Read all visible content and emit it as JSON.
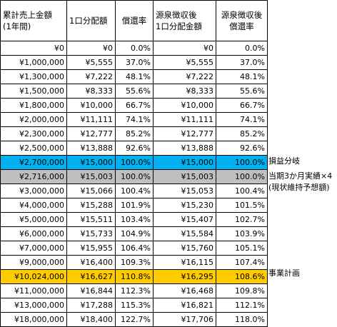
{
  "header": {
    "col1_line1": "累計売上金額",
    "col1_line2": "(1年間)",
    "col2": "1口分配額",
    "col3": "償還率",
    "col4_line1": "源泉徴収後",
    "col4_line2": "1口分配金額",
    "col5_line1": "源泉徴収後",
    "col5_line2": "償還率"
  },
  "rows": [
    {
      "sales": "¥0",
      "dist": "¥0",
      "rate": "0.0%",
      "net_dist": "¥0",
      "net_rate": "0.0%",
      "highlight": ""
    },
    {
      "sales": "¥1,000,000",
      "dist": "¥5,555",
      "rate": "37.0%",
      "net_dist": "¥5,555",
      "net_rate": "37.0%",
      "highlight": ""
    },
    {
      "sales": "¥1,300,000",
      "dist": "¥7,222",
      "rate": "48.1%",
      "net_dist": "¥7,222",
      "net_rate": "48.1%",
      "highlight": ""
    },
    {
      "sales": "¥1,500,000",
      "dist": "¥8,333",
      "rate": "55.6%",
      "net_dist": "¥8,333",
      "net_rate": "55.6%",
      "highlight": ""
    },
    {
      "sales": "¥1,800,000",
      "dist": "¥10,000",
      "rate": "66.7%",
      "net_dist": "¥10,000",
      "net_rate": "66.7%",
      "highlight": ""
    },
    {
      "sales": "¥2,000,000",
      "dist": "¥11,111",
      "rate": "74.1%",
      "net_dist": "¥11,111",
      "net_rate": "74.1%",
      "highlight": ""
    },
    {
      "sales": "¥2,300,000",
      "dist": "¥12,777",
      "rate": "85.2%",
      "net_dist": "¥12,777",
      "net_rate": "85.2%",
      "highlight": ""
    },
    {
      "sales": "¥2,500,000",
      "dist": "¥13,888",
      "rate": "92.6%",
      "net_dist": "¥13,888",
      "net_rate": "92.6%",
      "highlight": ""
    },
    {
      "sales": "¥2,700,000",
      "dist": "¥15,000",
      "rate": "100.0%",
      "net_dist": "¥15,000",
      "net_rate": "100.0%",
      "highlight": "blue"
    },
    {
      "sales": "¥2,716,000",
      "dist": "¥15,003",
      "rate": "100.0%",
      "net_dist": "¥15,003",
      "net_rate": "100.0%",
      "highlight": "gray"
    },
    {
      "sales": "¥3,000,000",
      "dist": "¥15,066",
      "rate": "100.4%",
      "net_dist": "¥15,053",
      "net_rate": "100.4%",
      "highlight": ""
    },
    {
      "sales": "¥4,000,000",
      "dist": "¥15,288",
      "rate": "101.9%",
      "net_dist": "¥15,230",
      "net_rate": "101.5%",
      "highlight": ""
    },
    {
      "sales": "¥5,000,000",
      "dist": "¥15,511",
      "rate": "103.4%",
      "net_dist": "¥15,407",
      "net_rate": "102.7%",
      "highlight": ""
    },
    {
      "sales": "¥6,000,000",
      "dist": "¥15,733",
      "rate": "104.9%",
      "net_dist": "¥15,584",
      "net_rate": "103.9%",
      "highlight": ""
    },
    {
      "sales": "¥7,000,000",
      "dist": "¥15,955",
      "rate": "106.4%",
      "net_dist": "¥15,760",
      "net_rate": "105.1%",
      "highlight": ""
    },
    {
      "sales": "¥9,000,000",
      "dist": "¥16,400",
      "rate": "109.3%",
      "net_dist": "¥16,115",
      "net_rate": "107.4%",
      "highlight": ""
    },
    {
      "sales": "¥10,024,000",
      "dist": "¥16,627",
      "rate": "110.8%",
      "net_dist": "¥16,295",
      "net_rate": "108.6%",
      "highlight": "gold"
    },
    {
      "sales": "¥11,000,000",
      "dist": "¥16,844",
      "rate": "112.3%",
      "net_dist": "¥16,468",
      "net_rate": "109.8%",
      "highlight": ""
    },
    {
      "sales": "¥13,000,000",
      "dist": "¥17,288",
      "rate": "115.3%",
      "net_dist": "¥16,821",
      "net_rate": "112.1%",
      "highlight": ""
    },
    {
      "sales": "¥18,000,000",
      "dist": "¥18,400",
      "rate": "122.7%",
      "net_dist": "¥17,706",
      "net_rate": "118.0%",
      "highlight": ""
    }
  ],
  "notes": {
    "break_even": "損益分岐",
    "forecast_line1": "当期3か月実績×4",
    "forecast_line2": "(現状維持予想額)",
    "business_plan": "事業計画"
  },
  "colors": {
    "break_even_row": "#00b0f0",
    "forecast_row": "#bfbfbf",
    "plan_row": "#ffcc00"
  }
}
